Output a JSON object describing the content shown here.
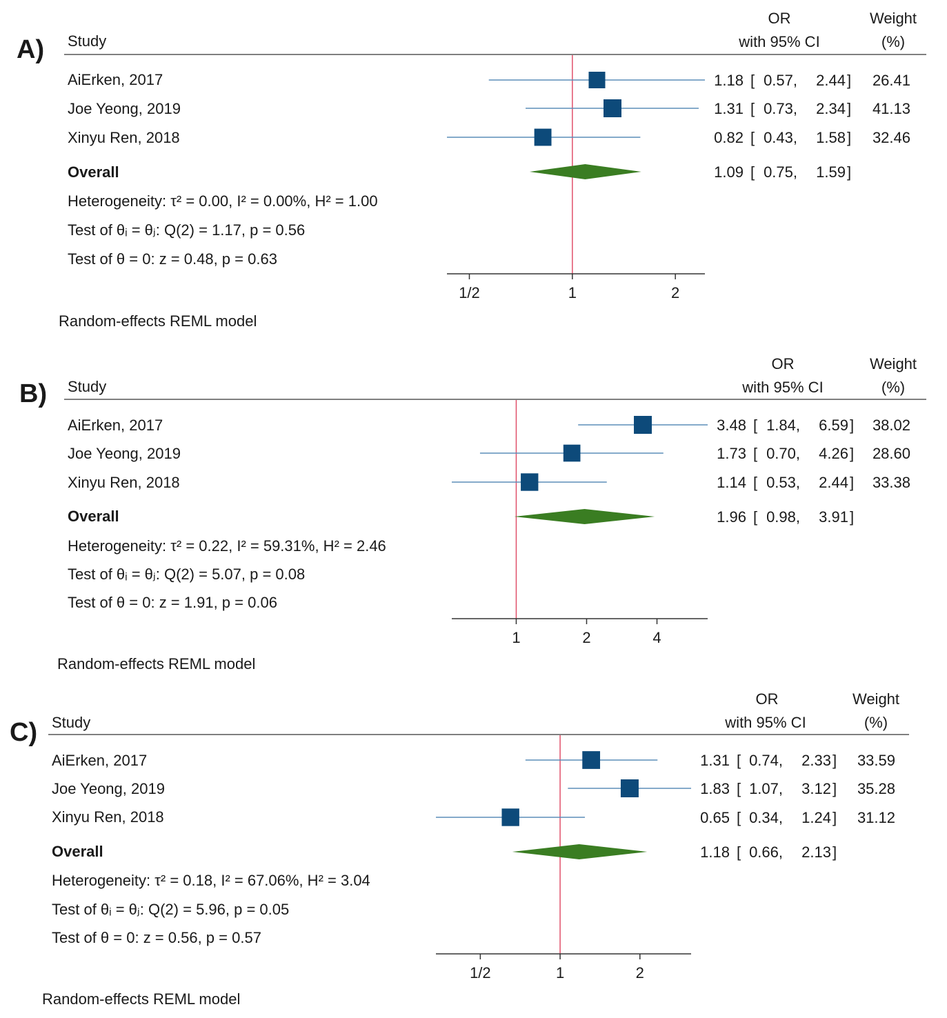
{
  "chart_data": [
    {
      "type": "forest",
      "panel_label": "A)",
      "headers": {
        "study": "Study",
        "or_top": "OR",
        "or_bottom": "with 95% CI",
        "weight_top": "Weight",
        "weight_bottom": "(%)"
      },
      "studies": [
        {
          "name": "AiErken, 2017",
          "or": 1.18,
          "lo": 0.57,
          "hi": 2.44,
          "or_text": "1.18",
          "lo_text": "0.57",
          "hi_text": "2.44",
          "weight": 26.41,
          "weight_text": "26.41"
        },
        {
          "name": "Joe Yeong, 2019",
          "or": 1.31,
          "lo": 0.73,
          "hi": 2.34,
          "or_text": "1.31",
          "lo_text": "0.73",
          "hi_text": "2.34",
          "weight": 41.13,
          "weight_text": "41.13"
        },
        {
          "name": "Xinyu Ren, 2018",
          "or": 0.82,
          "lo": 0.43,
          "hi": 1.58,
          "or_text": "0.82",
          "lo_text": "0.43",
          "hi_text": "1.58",
          "weight": 32.46,
          "weight_text": "32.46"
        }
      ],
      "overall": {
        "label": "Overall",
        "or": 1.09,
        "lo": 0.75,
        "hi": 1.59,
        "or_text": "1.09",
        "lo_text": "0.75",
        "hi_text": "1.59"
      },
      "stats": [
        "Heterogeneity: τ² = 0.00, I² = 0.00%, H² = 1.00",
        "Test of θᵢ = θⱼ: Q(2) = 1.17, p = 0.56",
        "Test of θ = 0: z = 0.48, p = 0.63"
      ],
      "xscale": "log",
      "xlim": [
        0.43,
        2.44
      ],
      "ticks": [
        {
          "value": 0.5,
          "label": "1/2"
        },
        {
          "value": 1,
          "label": "1"
        },
        {
          "value": 2,
          "label": "2"
        }
      ],
      "null_line": 1,
      "model": "Random-effects REML model"
    },
    {
      "type": "forest",
      "panel_label": "B)",
      "headers": {
        "study": "Study",
        "or_top": "OR",
        "or_bottom": "with 95% CI",
        "weight_top": "Weight",
        "weight_bottom": "(%)"
      },
      "studies": [
        {
          "name": "AiErken, 2017",
          "or": 3.48,
          "lo": 1.84,
          "hi": 6.59,
          "or_text": "3.48",
          "lo_text": "1.84",
          "hi_text": "6.59",
          "weight": 38.02,
          "weight_text": "38.02"
        },
        {
          "name": "Joe Yeong, 2019",
          "or": 1.73,
          "lo": 0.7,
          "hi": 4.26,
          "or_text": "1.73",
          "lo_text": "0.70",
          "hi_text": "4.26",
          "weight": 28.6,
          "weight_text": "28.60"
        },
        {
          "name": "Xinyu Ren, 2018",
          "or": 1.14,
          "lo": 0.53,
          "hi": 2.44,
          "or_text": "1.14",
          "lo_text": "0.53",
          "hi_text": "2.44",
          "weight": 33.38,
          "weight_text": "33.38"
        }
      ],
      "overall": {
        "label": "Overall",
        "or": 1.96,
        "lo": 0.98,
        "hi": 3.91,
        "or_text": "1.96",
        "lo_text": "0.98",
        "hi_text": "3.91"
      },
      "stats": [
        "Heterogeneity: τ² = 0.22, I² = 59.31%, H² = 2.46",
        "Test of θᵢ = θⱼ: Q(2) = 5.07, p = 0.08",
        "Test of θ = 0: z = 1.91, p = 0.06"
      ],
      "xscale": "log",
      "xlim": [
        0.53,
        6.59
      ],
      "ticks": [
        {
          "value": 1,
          "label": "1"
        },
        {
          "value": 2,
          "label": "2"
        },
        {
          "value": 4,
          "label": "4"
        }
      ],
      "null_line": 1,
      "model": "Random-effects REML model"
    },
    {
      "type": "forest",
      "panel_label": "C)",
      "headers": {
        "study": "Study",
        "or_top": "OR",
        "or_bottom": "with 95% CI",
        "weight_top": "Weight",
        "weight_bottom": "(%)"
      },
      "studies": [
        {
          "name": "AiErken, 2017",
          "or": 1.31,
          "lo": 0.74,
          "hi": 2.33,
          "or_text": "1.31",
          "lo_text": "0.74",
          "hi_text": "2.33",
          "weight": 33.59,
          "weight_text": "33.59"
        },
        {
          "name": "Joe Yeong, 2019",
          "or": 1.83,
          "lo": 1.07,
          "hi": 3.12,
          "or_text": "1.83",
          "lo_text": "1.07",
          "hi_text": "3.12",
          "weight": 35.28,
          "weight_text": "35.28"
        },
        {
          "name": "Xinyu Ren, 2018",
          "or": 0.65,
          "lo": 0.34,
          "hi": 1.24,
          "or_text": "0.65",
          "lo_text": "0.34",
          "hi_text": "1.24",
          "weight": 31.12,
          "weight_text": "31.12"
        }
      ],
      "overall": {
        "label": "Overall",
        "or": 1.18,
        "lo": 0.66,
        "hi": 2.13,
        "or_text": "1.18",
        "lo_text": "0.66",
        "hi_text": "2.13"
      },
      "stats": [
        "Heterogeneity: τ² = 0.18, I² = 67.06%, H² = 3.04",
        "Test of θᵢ = θⱼ: Q(2) = 5.96, p = 0.05",
        "Test of θ = 0: z = 0.56, p = 0.57"
      ],
      "xscale": "log",
      "xlim": [
        0.34,
        3.12
      ],
      "ticks": [
        {
          "value": 0.5,
          "label": "1/2"
        },
        {
          "value": 1,
          "label": "1"
        },
        {
          "value": 2,
          "label": "2"
        }
      ],
      "null_line": 1,
      "model": "Random-effects REML model"
    }
  ],
  "colors": {
    "marker": "#0d4a7a",
    "ci_line": "#5b8db8",
    "diamond": "#3a7d22",
    "null_line": "#e0506a",
    "axis": "#333333",
    "rule": "#555555",
    "text": "#1a1a1a"
  }
}
